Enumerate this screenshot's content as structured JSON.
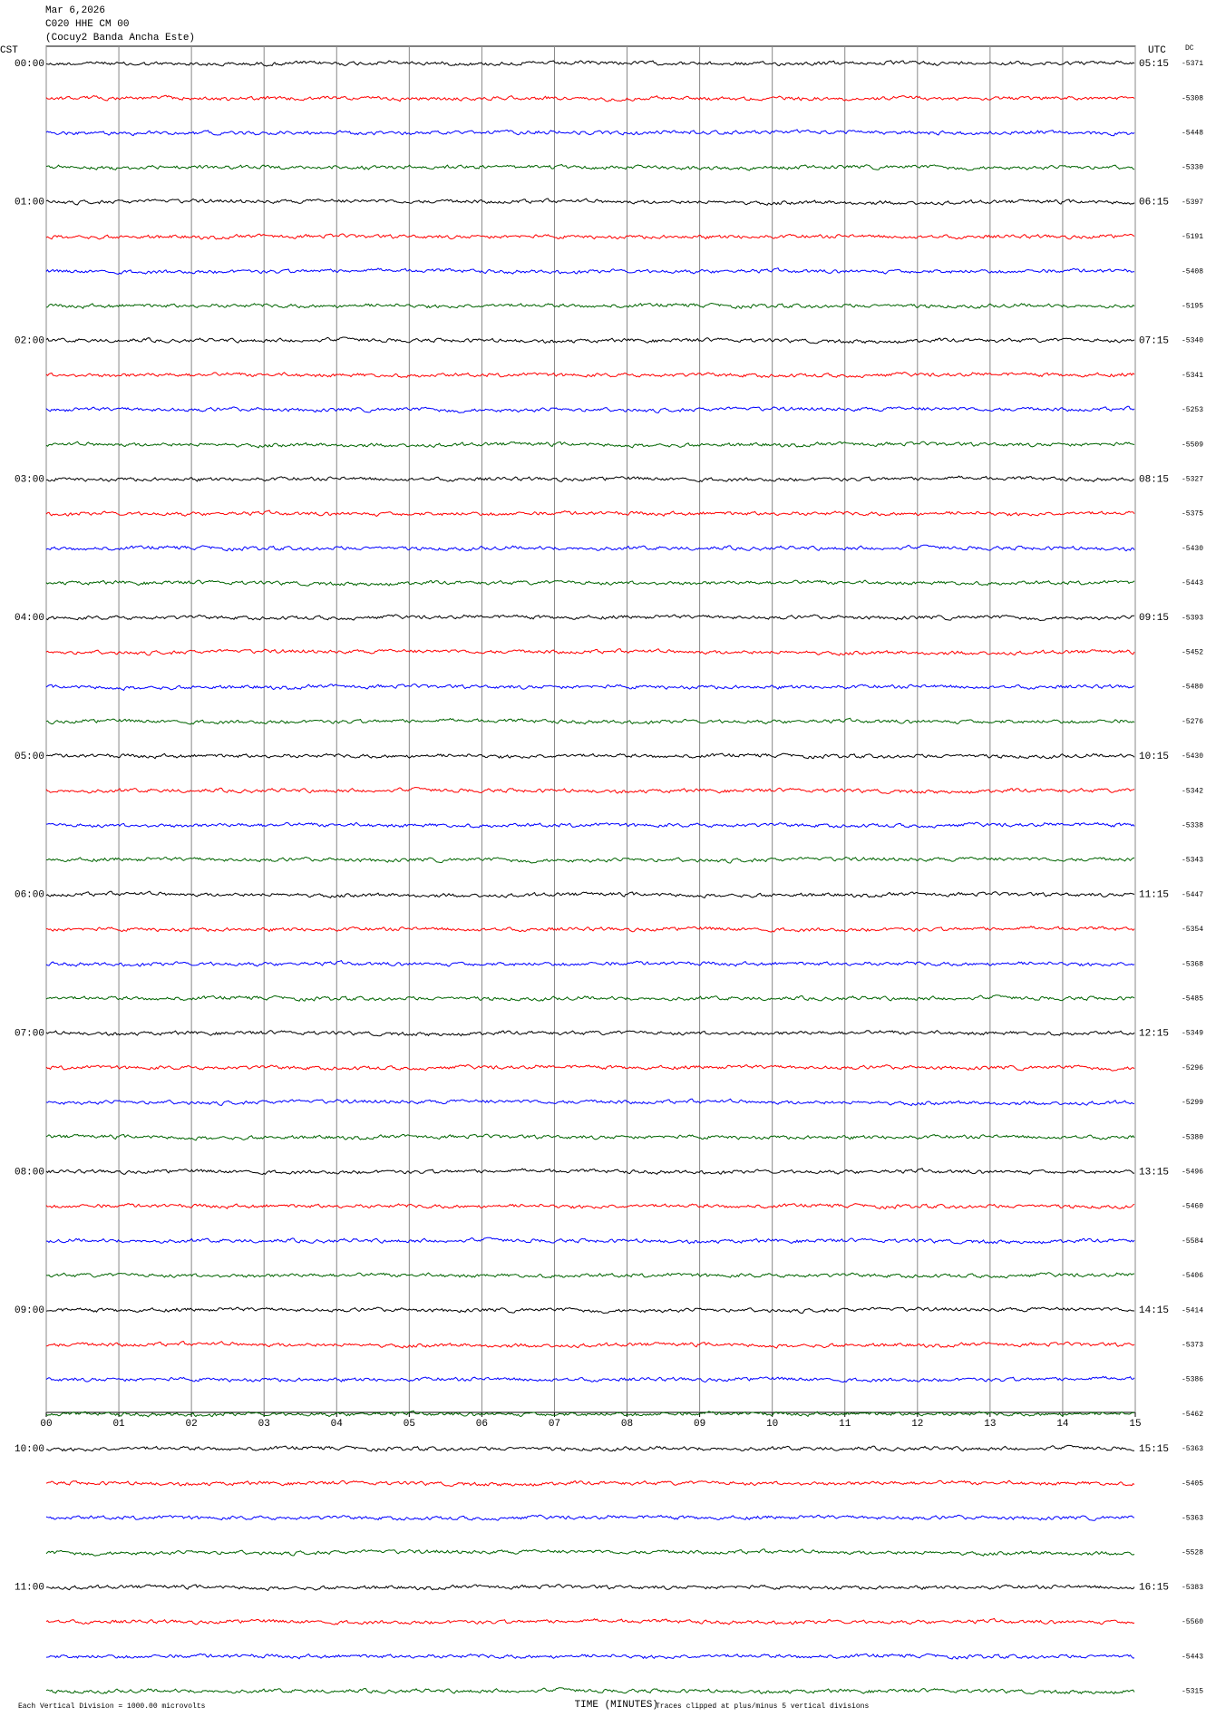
{
  "chart_data": {
    "type": "helicorder",
    "title": "Mar 6,2026",
    "subtitle": "C020 HHE CM 00",
    "station": "(Cocuy2 Banda Ancha Este)",
    "left_axis_label": "CST",
    "right_axis_label": "UTC",
    "dc_label": "DC",
    "xlabel": "TIME (MINUTES)",
    "scale_note": "Each Vertical Division = 1000.00 microvolts",
    "clip_note": "Traces clipped at plus/minus 5 vertical divisions",
    "xlim": [
      0,
      15
    ],
    "xticks": [
      {
        "value": 0,
        "label": "00"
      },
      {
        "value": 1,
        "label": "01"
      },
      {
        "value": 2,
        "label": "02"
      },
      {
        "value": 3,
        "label": "03"
      },
      {
        "value": 4,
        "label": "04"
      },
      {
        "value": 5,
        "label": "05"
      },
      {
        "value": 6,
        "label": "06"
      },
      {
        "value": 7,
        "label": "07"
      },
      {
        "value": 8,
        "label": "08"
      },
      {
        "value": 9,
        "label": "09"
      },
      {
        "value": 10,
        "label": "10"
      },
      {
        "value": 11,
        "label": "11"
      },
      {
        "value": 12,
        "label": "12"
      },
      {
        "value": 13,
        "label": "13"
      },
      {
        "value": 14,
        "label": "14"
      },
      {
        "value": 15,
        "label": "15"
      }
    ],
    "colors": [
      "#000000",
      "#ff0000",
      "#0000ff",
      "#006400"
    ],
    "left_labels": [
      "00:00",
      "01:00",
      "02:00",
      "03:00",
      "04:00",
      "05:00",
      "06:00",
      "07:00",
      "08:00",
      "09:00",
      "10:00",
      "11:00"
    ],
    "right_labels": [
      "05:15",
      "06:15",
      "07:15",
      "08:15",
      "09:15",
      "10:15",
      "11:15",
      "12:15",
      "13:15",
      "14:15",
      "15:15",
      "16:15"
    ],
    "dc": [
      -5371,
      -5308,
      -5448,
      -5330,
      -5397,
      -5191,
      -5408,
      -5195,
      -5340,
      -5341,
      -5253,
      -5509,
      -5327,
      -5375,
      -5430,
      -5443,
      -5393,
      -5452,
      -5480,
      -5276,
      -5430,
      -5342,
      -5338,
      -5343,
      -5447,
      -5354,
      -5368,
      -5485,
      -5349,
      -5296,
      -5299,
      -5380,
      -5496,
      -5460,
      -5584,
      -5406,
      -5414,
      -5373,
      -5386,
      -5462,
      -5363,
      -5405,
      -5363,
      -5528,
      -5383,
      -5560,
      -5443,
      -5315
    ]
  }
}
